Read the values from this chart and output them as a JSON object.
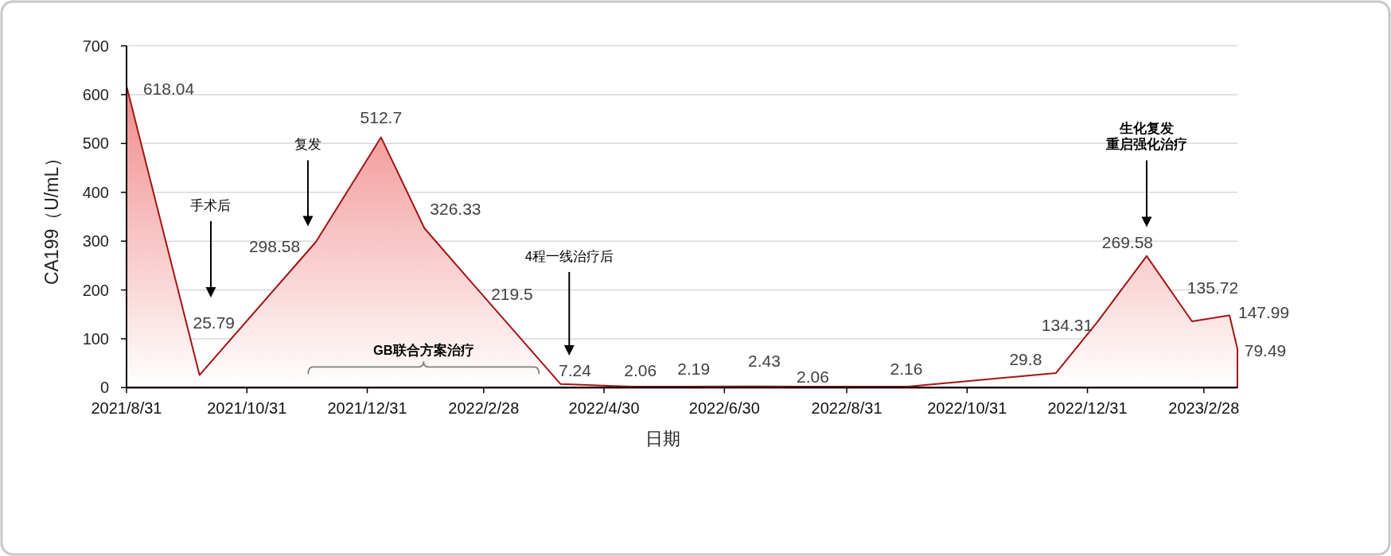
{
  "chart_data": {
    "type": "area",
    "xlabel": "日期",
    "ylabel": "CA199（U/mL）",
    "x": [
      "2021-08-31",
      "2021-10-07",
      "2021-12-05",
      "2022-01-07",
      "2022-01-29",
      "2022-02-21",
      "2022-04-08",
      "2022-05-14",
      "2022-06-10",
      "2022-07-15",
      "2022-08-09",
      "2022-10-01",
      "2022-12-15",
      "2023-01-05",
      "2023-01-30",
      "2023-02-22",
      "2023-03-13",
      "2023-03-17"
    ],
    "series": [
      {
        "color": "#a31515",
        "values": [
          618.04,
          25.79,
          298.58,
          512.7,
          326.33,
          219.5,
          7.24,
          2.06,
          2.19,
          2.43,
          2.06,
          2.16,
          29.8,
          134.31,
          269.58,
          135.72,
          147.99,
          79.49
        ]
      }
    ],
    "xlim": [
      "2021-08-31",
      "2023-03-17"
    ],
    "xticks": [
      {
        "value": "2021-08-31",
        "label": "2021/8/31"
      },
      {
        "value": "2021-10-31",
        "label": "2021/10/31"
      },
      {
        "value": "2021-12-31",
        "label": "2021/12/31"
      },
      {
        "value": "2022-02-28",
        "label": "2022/2/28"
      },
      {
        "value": "2022-04-30",
        "label": "2022/4/30"
      },
      {
        "value": "2022-06-30",
        "label": "2022/6/30"
      },
      {
        "value": "2022-08-31",
        "label": "2022/8/31"
      },
      {
        "value": "2022-10-31",
        "label": "2022/10/31"
      },
      {
        "value": "2022-12-31",
        "label": "2022/12/31"
      },
      {
        "value": "2023-02-28",
        "label": "2023/2/28"
      }
    ],
    "ylim": [
      0,
      700
    ],
    "yticks": [
      0,
      100,
      200,
      300,
      400,
      500,
      600,
      700
    ],
    "grid": "y",
    "data_labels": true,
    "annotations": [
      "手术后",
      "复发",
      "GB联合方案治疗",
      "4程一线治疗后",
      "生化复发重启强化治疗"
    ]
  }
}
